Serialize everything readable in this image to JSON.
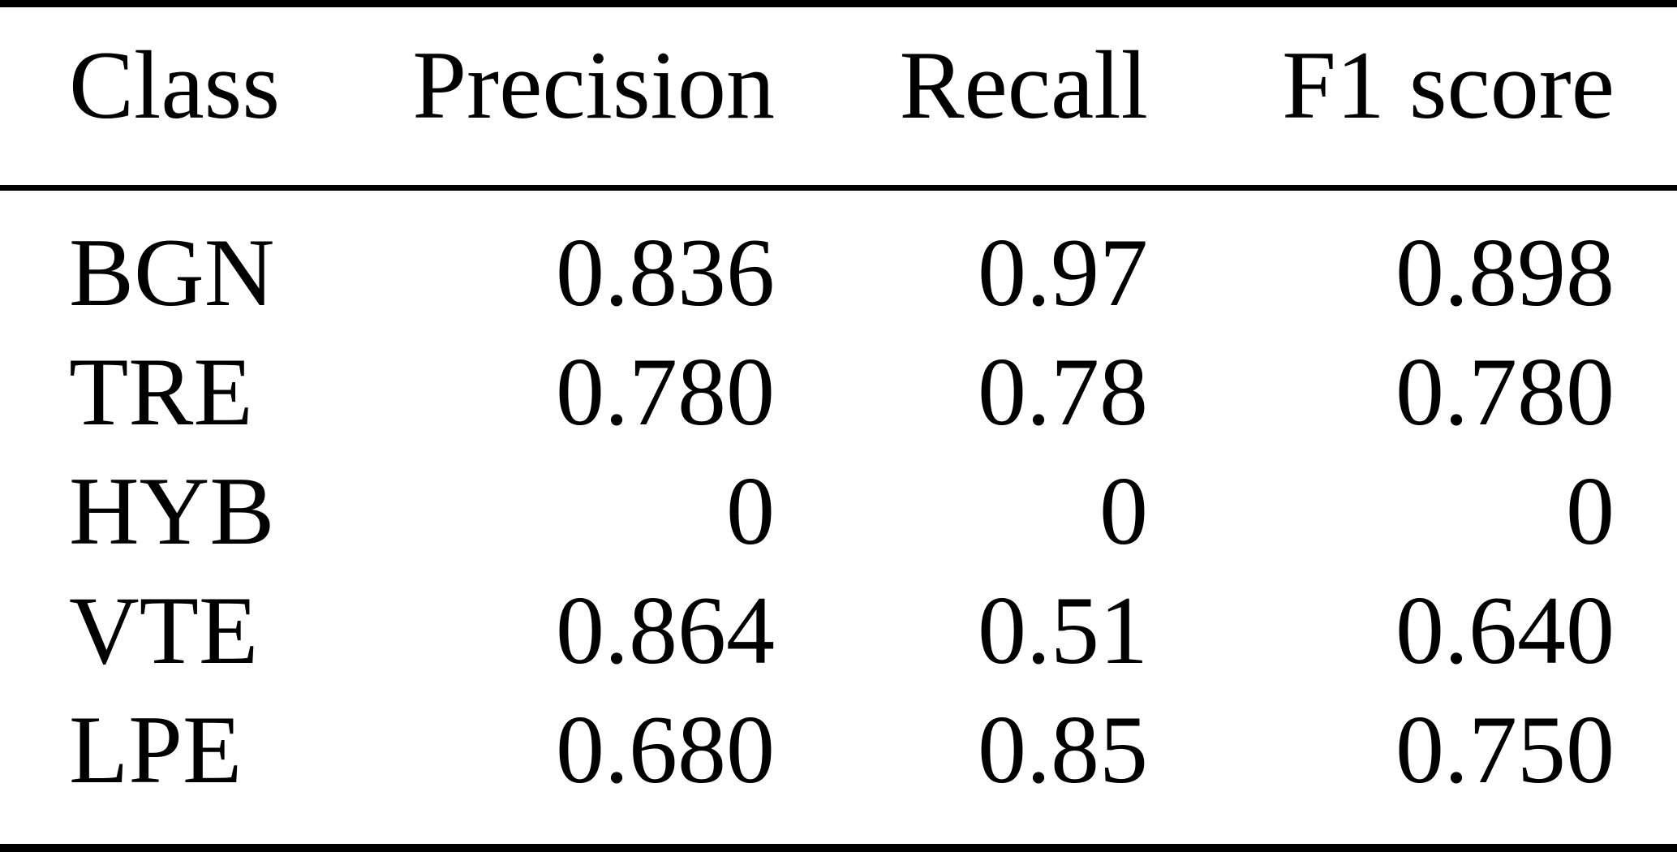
{
  "table": {
    "columns": [
      "Class",
      "Precision",
      "Recall",
      "F1 score"
    ],
    "rows": [
      [
        "BGN",
        "0.836",
        "0.97",
        "0.898"
      ],
      [
        "TRE",
        "0.780",
        "0.78",
        "0.780"
      ],
      [
        "HYB",
        "0",
        "0",
        "0"
      ],
      [
        "VTE",
        "0.864",
        "0.51",
        "0.640"
      ],
      [
        "LPE",
        "0.680",
        "0.85",
        "0.750"
      ]
    ]
  },
  "chart_data": {
    "type": "table",
    "title": "",
    "columns": [
      "Class",
      "Precision",
      "Recall",
      "F1 score"
    ],
    "rows": [
      {
        "class": "BGN",
        "precision": 0.836,
        "recall": 0.97,
        "f1_score": 0.898
      },
      {
        "class": "TRE",
        "precision": 0.78,
        "recall": 0.78,
        "f1_score": 0.78
      },
      {
        "class": "HYB",
        "precision": 0,
        "recall": 0,
        "f1_score": 0
      },
      {
        "class": "VTE",
        "precision": 0.864,
        "recall": 0.51,
        "f1_score": 0.64
      },
      {
        "class": "LPE",
        "precision": 0.68,
        "recall": 0.85,
        "f1_score": 0.75
      }
    ],
    "colors": {
      "text": "#000000",
      "rule": "#000000",
      "background": "#ffffff"
    }
  }
}
